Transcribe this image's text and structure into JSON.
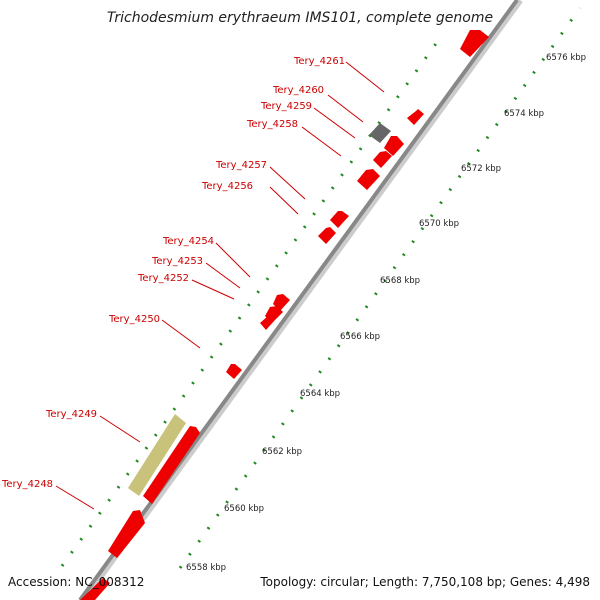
{
  "title": "Trichodesmium erythraeum IMS101, complete genome",
  "accession": "Accession: NC_008312",
  "summary": "Topology: circular; Length: 7,750,108 bp; Genes: 4,498",
  "colors": {
    "backbone": "#888888",
    "gene_forward": "#ee0000",
    "gene_gray": "#666666",
    "gene_olive": "#c8c27a",
    "label": "#cc0000",
    "tick": "#228822"
  },
  "scale_ticks": [
    "6558 kbp",
    "6560 kbp",
    "6562 kbp",
    "6564 kbp",
    "6566 kbp",
    "6568 kbp",
    "6570 kbp",
    "6572 kbp",
    "6574 kbp",
    "6576 kbp"
  ],
  "gene_labels": [
    "Tery_4261",
    "Tery_4260",
    "Tery_4259",
    "Tery_4258",
    "Tery_4257",
    "Tery_4256",
    "Tery_4254",
    "Tery_4253",
    "Tery_4252",
    "Tery_4250",
    "Tery_4249",
    "Tery_4248"
  ]
}
